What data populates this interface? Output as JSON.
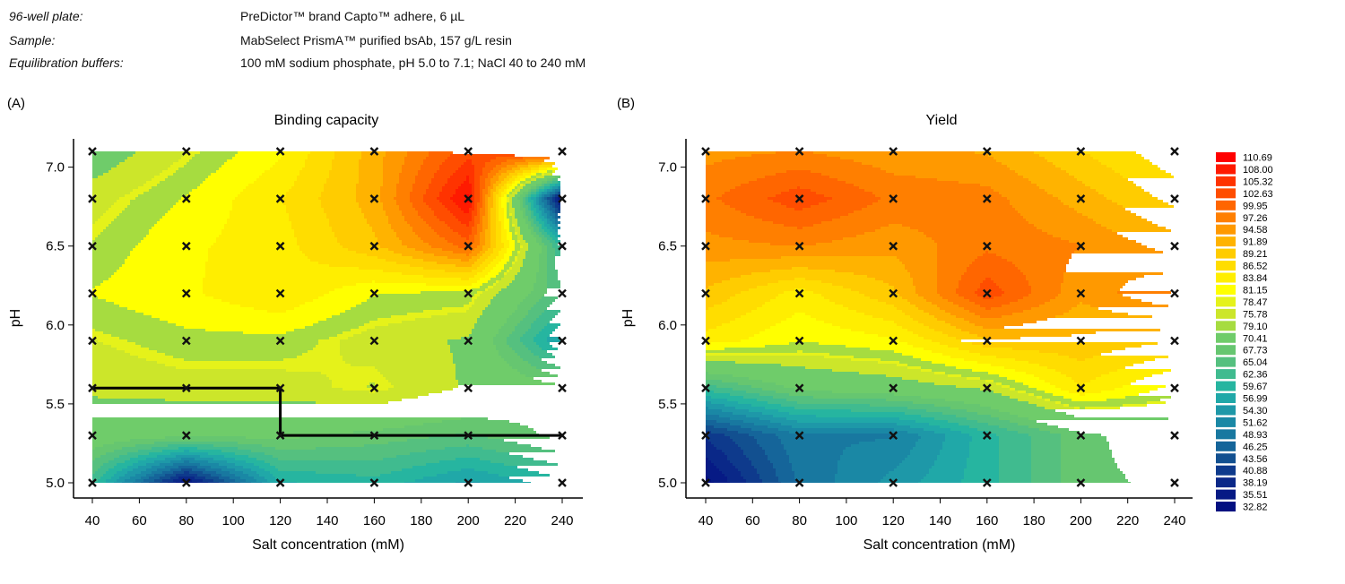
{
  "header": {
    "rows": [
      {
        "label": "96-well plate:",
        "value": "PreDictor™ brand Capto™ adhere, 6 µL"
      },
      {
        "label": "Sample:",
        "value": "MabSelect PrismA™ purified bsAb, 157 g/L resin"
      },
      {
        "label": "Equilibration buffers:",
        "value": "100 mM sodium phosphate, pH 5.0 to 7.1; NaCl 40 to 240 mM"
      }
    ]
  },
  "legend": {
    "levels": [
      "110.69",
      "108.00",
      "105.32",
      "102.63",
      "99.95",
      "97.26",
      "94.58",
      "91.89",
      "89.21",
      "86.52",
      "83.84",
      "81.15",
      "78.47",
      "75.78",
      "79.10",
      "70.41",
      "67.73",
      "65.04",
      "62.36",
      "59.67",
      "56.99",
      "54.30",
      "51.62",
      "48.93",
      "46.25",
      "43.56",
      "40.88",
      "38.19",
      "35.51",
      "32.82"
    ],
    "colors": [
      "#ff0000",
      "#ff1a00",
      "#ff3300",
      "#ff4d00",
      "#ff6600",
      "#ff7f00",
      "#ff9900",
      "#ffb300",
      "#ffcc00",
      "#ffdd00",
      "#ffee00",
      "#ffff00",
      "#e5f21a",
      "#cce62a",
      "#a6dc40",
      "#6fcc6a",
      "#66c670",
      "#55c07f",
      "#40bb8f",
      "#26b5a0",
      "#20a8a8",
      "#1e98a8",
      "#1a88a5",
      "#1878a0",
      "#15659a",
      "#125090",
      "#0e3a8c",
      "#0a2888",
      "#061a85",
      "#021080"
    ]
  },
  "chart_data": [
    {
      "type": "heatmap",
      "panel_label": "(A)",
      "title": "Binding capacity",
      "xlabel": "Salt concentration (mM)",
      "ylabel": "pH",
      "x": [
        40,
        80,
        120,
        160,
        200,
        240
      ],
      "y": [
        7.1,
        6.8,
        6.5,
        6.2,
        5.9,
        5.6,
        5.3,
        5.0
      ],
      "z": [
        [
          72,
          77,
          82,
          92,
          103,
          105
        ],
        [
          76,
          80,
          85,
          92,
          110,
          33
        ],
        [
          78,
          82,
          84,
          90,
          100,
          60
        ],
        [
          80,
          82,
          85,
          80,
          79,
          64
        ],
        [
          77,
          79,
          79,
          76,
          74,
          55
        ],
        [
          75,
          76,
          76,
          78,
          74,
          70
        ],
        [
          72,
          70,
          70,
          68,
          66,
          70
        ],
        [
          62,
          34,
          58,
          60,
          55,
          60
        ]
      ],
      "xticks": [
        "40",
        "60",
        "80",
        "100",
        "120",
        "140",
        "160",
        "180",
        "200",
        "220",
        "240"
      ],
      "yticks": [
        "5.0",
        "5.5",
        "6.0",
        "6.5",
        "7.0"
      ],
      "xlim": [
        40,
        240
      ],
      "ylim": [
        5.0,
        7.1
      ],
      "markers": "x at every measured well",
      "boundary_line": [
        [
          40,
          5.6
        ],
        [
          120,
          5.6
        ],
        [
          120,
          5.3
        ],
        [
          240,
          5.3
        ]
      ]
    },
    {
      "type": "heatmap",
      "panel_label": "(B)",
      "title": "Yield",
      "xlabel": "Salt concentration (mM)",
      "ylabel": "pH",
      "x": [
        40,
        80,
        120,
        160,
        200,
        240
      ],
      "y": [
        7.1,
        6.8,
        6.5,
        6.2,
        5.9,
        5.6,
        5.3,
        5.0
      ],
      "z": [
        [
          95,
          96,
          94,
          93,
          88,
          83
        ],
        [
          98,
          103,
          98,
          97,
          92,
          87
        ],
        [
          95,
          96,
          94,
          98,
          96,
          92
        ],
        [
          90,
          84,
          90,
          103,
          94,
          99
        ],
        [
          84,
          80,
          82,
          90,
          90,
          88
        ],
        [
          62,
          70,
          72,
          75,
          85,
          79
        ],
        [
          40,
          50,
          50,
          60,
          68,
          72
        ],
        [
          33,
          48,
          54,
          60,
          68,
          70
        ]
      ],
      "xticks": [
        "40",
        "60",
        "80",
        "100",
        "120",
        "140",
        "160",
        "180",
        "200",
        "220",
        "240"
      ],
      "yticks": [
        "5.0",
        "5.5",
        "6.0",
        "6.5",
        "7.0"
      ],
      "xlim": [
        40,
        240
      ],
      "ylim": [
        5.0,
        7.1
      ],
      "markers": "x at every measured well"
    }
  ]
}
